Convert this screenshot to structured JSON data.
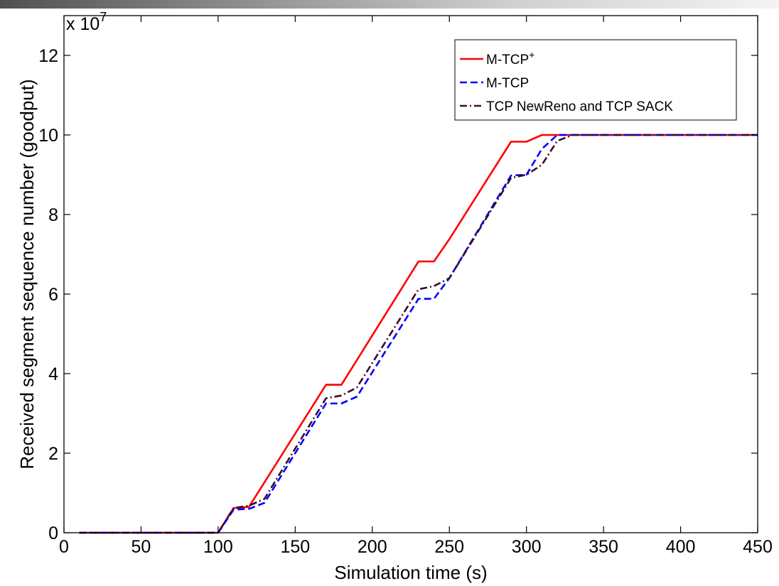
{
  "chart_data": {
    "type": "line",
    "title": "",
    "xlabel": "Simulation time (s)",
    "ylabel": "Received segment sequence number (goodput)",
    "y_multiplier_label": "x 10",
    "y_multiplier_exponent": "7",
    "xlim": [
      0,
      450
    ],
    "ylim": [
      0,
      13
    ],
    "xticks": [
      0,
      50,
      100,
      150,
      200,
      250,
      300,
      350,
      400,
      450
    ],
    "yticks": [
      0,
      2,
      4,
      6,
      8,
      10,
      12
    ],
    "grid": false,
    "legend_position": "top-right",
    "series": [
      {
        "name": "M-TCP",
        "name_superscript": "+",
        "color": "#ff0000",
        "dash": "solid",
        "x": [
          10,
          100,
          110,
          120,
          170,
          180,
          230,
          240,
          250,
          290,
          300,
          310,
          450
        ],
        "y": [
          0,
          0,
          0.62,
          0.65,
          3.72,
          3.72,
          6.82,
          6.82,
          7.38,
          9.83,
          9.83,
          10.0,
          10.0
        ]
      },
      {
        "name": "M-TCP",
        "name_superscript": "",
        "color": "#0000ff",
        "dash": "dashed",
        "x": [
          10,
          100,
          110,
          120,
          130,
          170,
          180,
          190,
          230,
          240,
          250,
          290,
          300,
          310,
          320,
          450
        ],
        "y": [
          0,
          0,
          0.58,
          0.6,
          0.75,
          3.25,
          3.25,
          3.42,
          5.88,
          5.88,
          6.4,
          8.98,
          9.0,
          9.65,
          10.0,
          10.0
        ]
      },
      {
        "name": "TCP NewReno and TCP SACK",
        "name_superscript": "",
        "color": "#3d0a2e",
        "dash": "dashdot",
        "x": [
          10,
          100,
          110,
          120,
          130,
          170,
          180,
          190,
          230,
          240,
          250,
          290,
          300,
          310,
          320,
          330,
          450
        ],
        "y": [
          0,
          0,
          0.62,
          0.68,
          0.85,
          3.38,
          3.45,
          3.65,
          6.12,
          6.2,
          6.4,
          8.92,
          9.0,
          9.25,
          9.85,
          10.0,
          10.0
        ]
      }
    ]
  }
}
